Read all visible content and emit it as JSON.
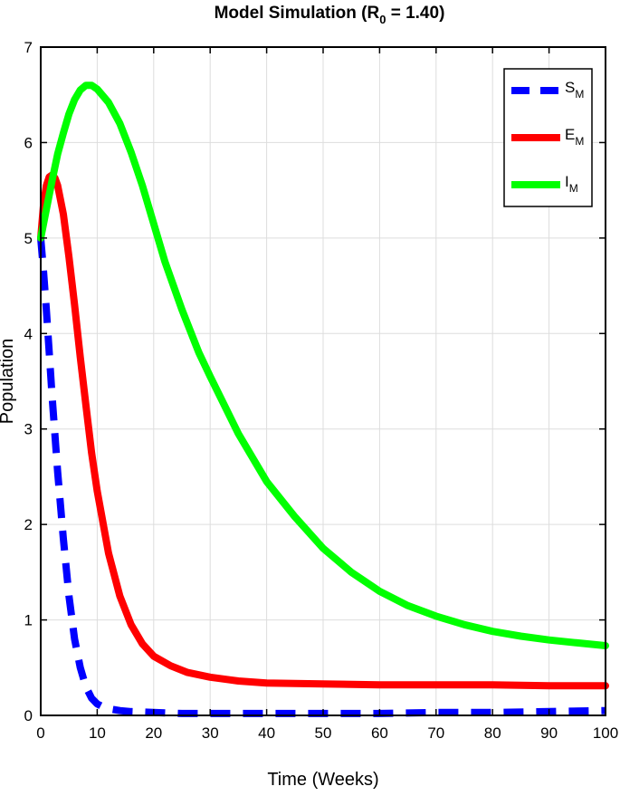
{
  "chart_data": {
    "type": "line",
    "title": {
      "prefix": "Model Simulation (R",
      "subscript": "0",
      "suffix": " = 1.40)"
    },
    "xlabel": "Time (Weeks)",
    "ylabel": "Population",
    "xlim": [
      0,
      100
    ],
    "ylim": [
      0,
      7
    ],
    "xticks": [
      0,
      10,
      20,
      30,
      40,
      50,
      60,
      70,
      80,
      90,
      100
    ],
    "yticks": [
      0,
      1,
      2,
      3,
      4,
      5,
      6,
      7
    ],
    "grid": true,
    "legend_position": "top-right",
    "series": [
      {
        "name": "S",
        "subscript": "M",
        "color": "#0000ff",
        "style": "dashed",
        "x": [
          0,
          0.5,
          1,
          1.5,
          2,
          3,
          4,
          5,
          6,
          7,
          8,
          9,
          10,
          11,
          12,
          14,
          16,
          20,
          25,
          30,
          40,
          50,
          60,
          70,
          80,
          90,
          100
        ],
        "y": [
          5.0,
          4.65,
          4.25,
          3.8,
          3.35,
          2.55,
          1.85,
          1.25,
          0.8,
          0.5,
          0.3,
          0.18,
          0.12,
          0.09,
          0.07,
          0.05,
          0.04,
          0.03,
          0.02,
          0.02,
          0.02,
          0.02,
          0.02,
          0.03,
          0.03,
          0.04,
          0.05
        ]
      },
      {
        "name": "E",
        "subscript": "M",
        "color": "#ff0000",
        "style": "solid",
        "x": [
          0,
          0.5,
          1,
          1.5,
          2,
          2.5,
          3,
          4,
          5,
          6,
          7,
          8,
          9,
          10,
          12,
          14,
          16,
          18,
          20,
          23,
          26,
          30,
          35,
          40,
          50,
          60,
          70,
          80,
          90,
          100
        ],
        "y": [
          5.0,
          5.35,
          5.55,
          5.64,
          5.66,
          5.63,
          5.55,
          5.25,
          4.8,
          4.3,
          3.75,
          3.25,
          2.75,
          2.35,
          1.7,
          1.25,
          0.95,
          0.75,
          0.62,
          0.52,
          0.45,
          0.4,
          0.36,
          0.34,
          0.33,
          0.32,
          0.32,
          0.32,
          0.31,
          0.31
        ]
      },
      {
        "name": "I",
        "subscript": "M",
        "color": "#00ff00",
        "style": "solid",
        "x": [
          0,
          1,
          2,
          3,
          4,
          5,
          6,
          7,
          8,
          9,
          10,
          12,
          14,
          16,
          18,
          20,
          22,
          25,
          28,
          30,
          35,
          40,
          45,
          50,
          55,
          60,
          65,
          70,
          75,
          80,
          85,
          90,
          95,
          100
        ],
        "y": [
          5.0,
          5.3,
          5.6,
          5.88,
          6.1,
          6.3,
          6.45,
          6.55,
          6.6,
          6.6,
          6.56,
          6.42,
          6.2,
          5.9,
          5.55,
          5.15,
          4.75,
          4.25,
          3.8,
          3.55,
          2.95,
          2.45,
          2.08,
          1.75,
          1.5,
          1.3,
          1.15,
          1.04,
          0.95,
          0.88,
          0.83,
          0.79,
          0.76,
          0.73
        ]
      }
    ]
  }
}
